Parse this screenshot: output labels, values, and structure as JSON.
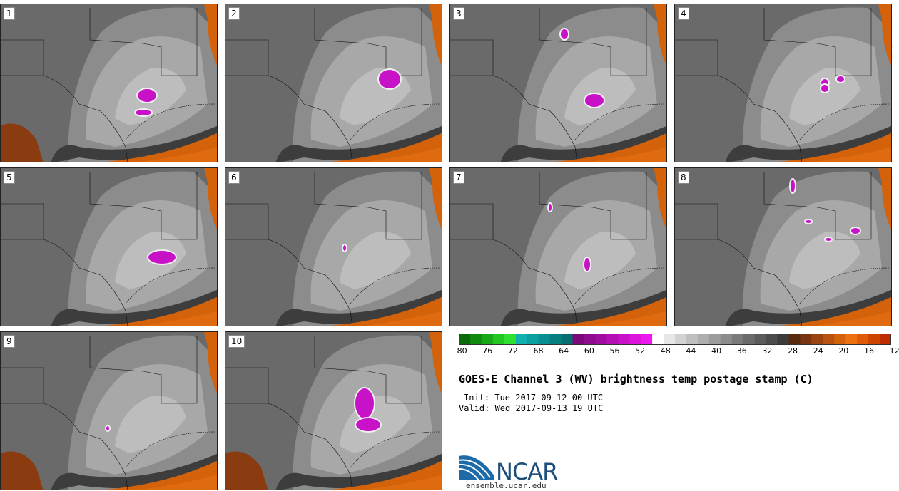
{
  "panels": [
    {
      "label": "1"
    },
    {
      "label": "2"
    },
    {
      "label": "3"
    },
    {
      "label": "4"
    },
    {
      "label": "5"
    },
    {
      "label": "6"
    },
    {
      "label": "7"
    },
    {
      "label": "8"
    },
    {
      "label": "9"
    },
    {
      "label": "10"
    }
  ],
  "colorbar": {
    "ticks": [
      "−80",
      "−76",
      "−72",
      "−68",
      "−64",
      "−60",
      "−56",
      "−52",
      "−48",
      "−44",
      "−40",
      "−36",
      "−32",
      "−28",
      "−24",
      "−20",
      "−16",
      "−12"
    ],
    "colors": [
      "#0a6b0a",
      "#0f8a0f",
      "#17a817",
      "#22c622",
      "#30e030",
      "#10b0b0",
      "#0aa0a0",
      "#089090",
      "#067f80",
      "#056f70",
      "#7a0a7a",
      "#8e0a8e",
      "#a00ca0",
      "#b410b4",
      "#c812c8",
      "#dc14dc",
      "#ee18ee",
      "#ffffff",
      "#e6e6e6",
      "#d2d2d2",
      "#bfbfbf",
      "#aeaeae",
      "#9c9c9c",
      "#8c8c8c",
      "#7b7b7b",
      "#6b6b6b",
      "#5c5c5c",
      "#4c4c4c",
      "#3c3c3c",
      "#5a2a10",
      "#7a3510",
      "#9a4410",
      "#b8520e",
      "#d4620a",
      "#ec7210",
      "#e05a08",
      "#cc4400",
      "#c02e00"
    ]
  },
  "title": "GOES-E Channel 3 (WV) brightness temp postage stamp (C)",
  "init": "Init: Tue 2017-09-12 00 UTC",
  "valid": "Valid: Wed 2017-09-13 19 UTC",
  "logo": {
    "text": "NCAR",
    "url": "ensemble.ucar.edu"
  }
}
